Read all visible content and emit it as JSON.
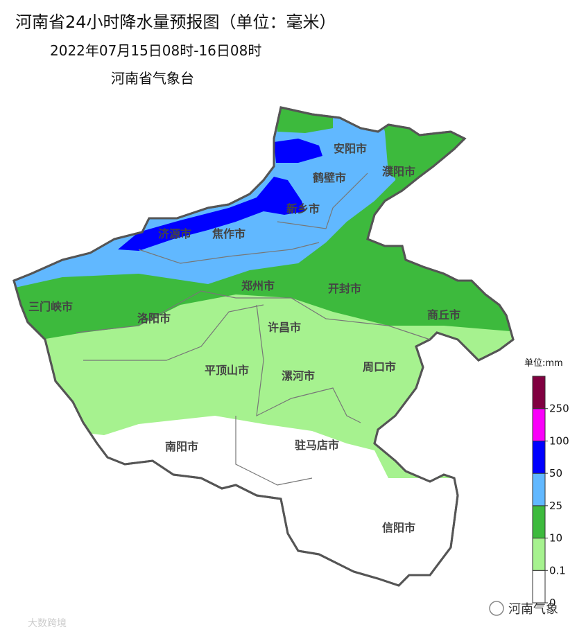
{
  "header": {
    "title": "河南省24小时降水量预报图（单位：毫米）",
    "period": "2022年07月15日08时-16日08时",
    "issuer": "河南省气象台"
  },
  "map": {
    "cities": [
      "安阳市",
      "鹤壁市",
      "濮阳市",
      "新乡市",
      "济源市",
      "焦作市",
      "三门峡市",
      "洛阳市",
      "郑州市",
      "开封市",
      "商丘市",
      "许昌市",
      "平顶山市",
      "漯河市",
      "周口市",
      "南阳市",
      "驻马店市",
      "信阳市"
    ]
  },
  "legend": {
    "unit": "单位:mm",
    "ticks": [
      0,
      0.1,
      10,
      25,
      50,
      100,
      250
    ],
    "colors": [
      "#ffffff",
      "#a6f28f",
      "#3dba3d",
      "#61b8ff",
      "#0000ff",
      "#fa00fa",
      "#800040"
    ]
  },
  "watermarks": {
    "account": "河南气象",
    "source": "大数跨境"
  }
}
